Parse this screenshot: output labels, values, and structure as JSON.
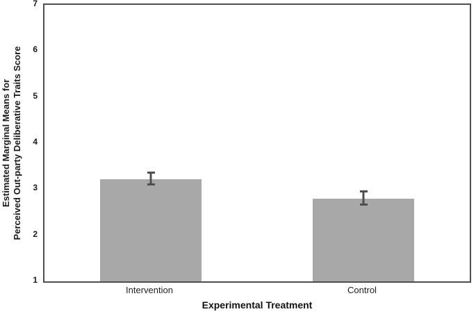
{
  "chart_data": {
    "type": "bar",
    "title": "",
    "xlabel": "Experimental Treatment",
    "ylabel_line1": "Estimated Marginal Means for",
    "ylabel_line2": "Perceived Out-party Deliberative Traits Score",
    "categories": [
      "Intervention",
      "Control"
    ],
    "values": [
      3.22,
      2.8
    ],
    "error_high": [
      3.38,
      2.97
    ],
    "error_low": [
      3.08,
      2.65
    ],
    "ylim": [
      1,
      7
    ],
    "yticks": [
      1,
      2,
      3,
      4,
      5,
      6,
      7
    ],
    "grid": false,
    "legend": false,
    "bar_width_fraction": 0.24,
    "colors": {
      "bar_fill": "#a8a8a8",
      "error_bar": "#4f4f4f",
      "frame": "#4d4d4d",
      "text": "#1a1a1a",
      "background": "#ffffff"
    }
  }
}
